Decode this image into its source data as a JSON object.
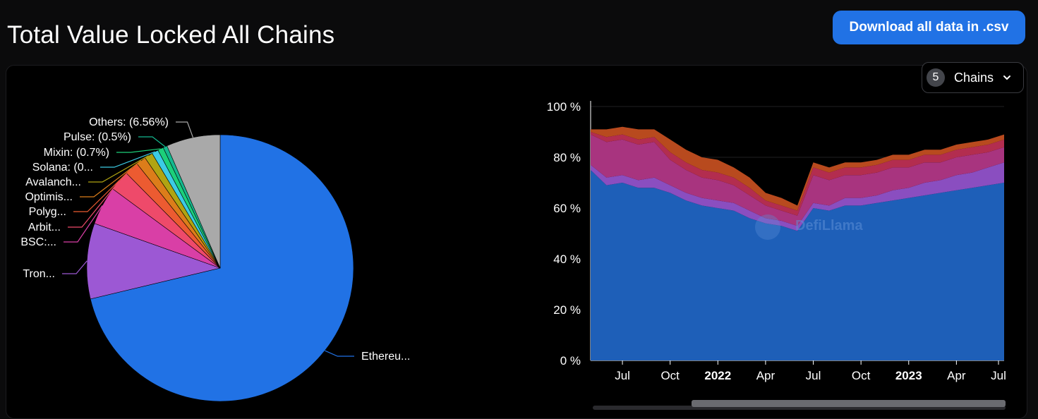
{
  "header": {
    "title": "Total Value Locked All Chains",
    "download_label": "Download all data in .csv"
  },
  "chains_select": {
    "count": "5",
    "label": "Chains"
  },
  "colors": {
    "ethereum": "#2172e5",
    "tron": "#9c58d4",
    "bsc": "#d93fa6",
    "arbitrum": "#e94262",
    "polygon": "#e85a2e",
    "optimism": "#d4861d",
    "avalanche": "#a79a14",
    "solana": "#3ccbe4",
    "mixin": "#1cd07a",
    "pulse": "#14b88f",
    "others": "#a9a9a9"
  },
  "watermark": "DefiLlama",
  "chart_data": [
    {
      "type": "pie",
      "slices": [
        {
          "label": "Ethereu...",
          "value": 71.6,
          "color": "#2172e5"
        },
        {
          "label": "Tron...",
          "value": 9.2,
          "color": "#9c58d4"
        },
        {
          "label": "BSC:...",
          "value": 4.7,
          "color": "#d93fa6"
        },
        {
          "label": "Arbit...",
          "value": 2.5,
          "color": "#ee4a6a"
        },
        {
          "label": "Polyg...",
          "value": 1.7,
          "color": "#ec5b31"
        },
        {
          "label": "Optimis...",
          "value": 1.2,
          "color": "#dc7d1a"
        },
        {
          "label": "Avalanch...",
          "value": 1.0,
          "color": "#b0a412"
        },
        {
          "label": "Solana: (0...",
          "value": 0.8,
          "color": "#3ccbe4"
        },
        {
          "label": "Mixin: (0.7%)",
          "value": 0.7,
          "color": "#1cd07a"
        },
        {
          "label": "Pulse: (0.5%)",
          "value": 0.5,
          "color": "#14b88f"
        },
        {
          "label": "Others: (6.56%)",
          "value": 6.56,
          "color": "#a9a9a9"
        }
      ]
    },
    {
      "type": "area",
      "stacked": true,
      "percent": true,
      "ylim": [
        0,
        100
      ],
      "y_ticks": [
        "0 %",
        "20 %",
        "40 %",
        "60 %",
        "80 %",
        "100 %"
      ],
      "x_ticks": [
        "Jul",
        "Oct",
        "2022",
        "Apr",
        "Jul",
        "Oct",
        "2023",
        "Apr",
        "Jul"
      ],
      "x_tick_bold": [
        false,
        false,
        true,
        false,
        false,
        false,
        true,
        false,
        false
      ],
      "x": [
        "2021-05",
        "2021-06",
        "2021-07",
        "2021-08",
        "2021-09",
        "2021-10",
        "2021-11",
        "2021-12",
        "2022-01",
        "2022-02",
        "2022-03",
        "2022-04",
        "2022-05",
        "2022-06",
        "2022-07",
        "2022-08",
        "2022-09",
        "2022-10",
        "2022-11",
        "2022-12",
        "2023-01",
        "2023-02",
        "2023-03",
        "2023-04",
        "2023-05",
        "2023-06",
        "2023-07"
      ],
      "series": [
        {
          "name": "Ethereum",
          "color": "#1e5fb8",
          "values": [
            75,
            69,
            70,
            68,
            68,
            66,
            63,
            61,
            60,
            59,
            56,
            54,
            53,
            51,
            60,
            59,
            61,
            61,
            62,
            63,
            64,
            65,
            66,
            67,
            68,
            69,
            70
          ]
        },
        {
          "name": "Tron",
          "color": "#8a4ec0",
          "values": [
            2,
            3,
            3,
            3,
            4,
            3,
            3,
            3,
            3,
            3,
            3,
            2,
            2,
            2,
            2,
            2,
            3,
            3,
            3,
            4,
            4,
            5,
            5,
            6,
            6,
            7,
            8
          ]
        },
        {
          "name": "BSC",
          "color": "#a8347f",
          "values": [
            12,
            14,
            14,
            14,
            14,
            10,
            9,
            8,
            8,
            7,
            6,
            5,
            4,
            4,
            11,
            10,
            9,
            9,
            9,
            9,
            8,
            8,
            7,
            7,
            7,
            6,
            6
          ]
        },
        {
          "name": "Arbitrum",
          "color": "#b32d4f",
          "values": [
            1,
            2,
            2,
            2,
            2,
            3,
            3,
            3,
            3,
            3,
            3,
            2,
            2,
            2,
            3,
            3,
            3,
            3,
            3,
            3,
            3,
            3,
            3,
            3,
            3,
            3,
            3
          ]
        },
        {
          "name": "Polygon",
          "color": "#b84a1e",
          "values": [
            1,
            3,
            3,
            4,
            3,
            5,
            5,
            5,
            5,
            4,
            4,
            3,
            3,
            2,
            2,
            2,
            2,
            2,
            2,
            2,
            2,
            2,
            2,
            2,
            2,
            2,
            2
          ]
        }
      ]
    }
  ]
}
